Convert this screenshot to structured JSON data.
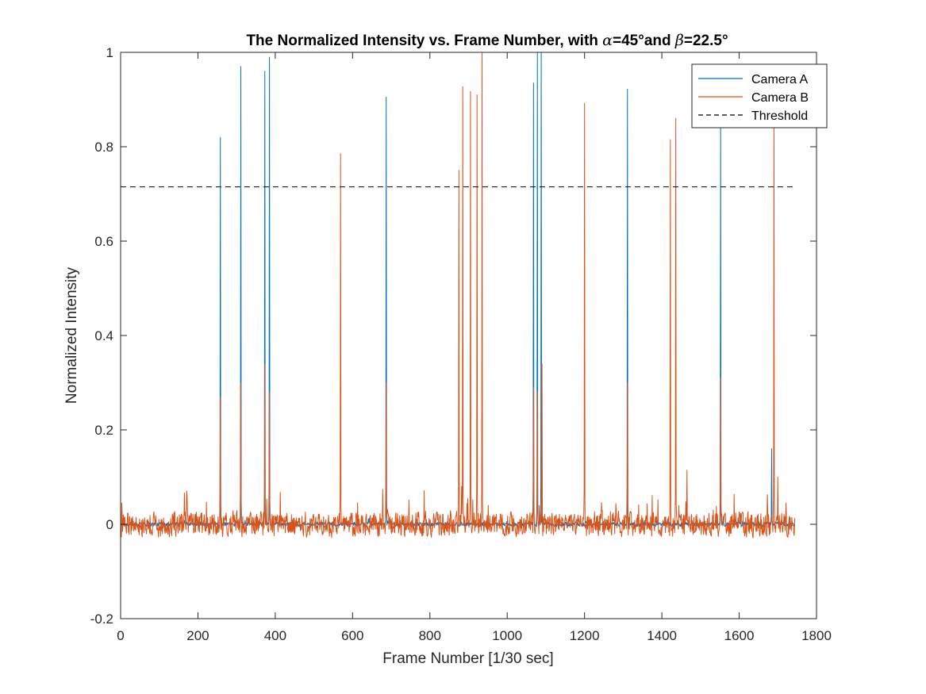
{
  "chart_data": {
    "type": "line",
    "title_parts": [
      "The Normalized Intensity vs. Frame Number, with ",
      "α",
      "=45°and ",
      "β",
      "=22.5°"
    ],
    "xlabel": "Frame Number [1/30 sec]",
    "ylabel": "Normalized Intensity",
    "xlim": [
      0,
      1800
    ],
    "ylim": [
      -0.2,
      1
    ],
    "xticks": [
      0,
      200,
      400,
      600,
      800,
      1000,
      1200,
      1400,
      1600,
      1800
    ],
    "yticks": [
      -0.2,
      0,
      0.2,
      0.4,
      0.6,
      0.8,
      1
    ],
    "ytick_labels": [
      "-0.2",
      "0",
      "0.2",
      "0.4",
      "0.6",
      "0.8",
      "1"
    ],
    "grid": false,
    "legend_position": "top-right",
    "frame_count": 1745,
    "series": [
      {
        "name": "Camera A",
        "color": "#0072BD",
        "style": "solid",
        "baseline": 0.0,
        "noise_amplitude": 0.004,
        "spikes": [
          {
            "x": 258,
            "y": 0.82
          },
          {
            "x": 311,
            "y": 0.97
          },
          {
            "x": 373,
            "y": 0.96
          },
          {
            "x": 385,
            "y": 0.99
          },
          {
            "x": 687,
            "y": 0.905
          },
          {
            "x": 1068,
            "y": 0.935
          },
          {
            "x": 1078,
            "y": 1.0
          },
          {
            "x": 1088,
            "y": 1.0
          },
          {
            "x": 1311,
            "y": 0.922
          },
          {
            "x": 1552,
            "y": 0.85
          },
          {
            "x": 1684,
            "y": 0.16
          }
        ]
      },
      {
        "name": "Camera B",
        "color": "#D95319",
        "style": "solid",
        "baseline": 0.0,
        "noise_amplitude": 0.02,
        "spikes": [
          {
            "x": 258,
            "y": 0.27
          },
          {
            "x": 311,
            "y": 0.3
          },
          {
            "x": 373,
            "y": 0.34
          },
          {
            "x": 385,
            "y": 0.28
          },
          {
            "x": 569,
            "y": 0.785
          },
          {
            "x": 687,
            "y": 0.3
          },
          {
            "x": 875,
            "y": 0.75
          },
          {
            "x": 885,
            "y": 0.927
          },
          {
            "x": 905,
            "y": 0.917
          },
          {
            "x": 922,
            "y": 0.91
          },
          {
            "x": 935,
            "y": 1.0
          },
          {
            "x": 1068,
            "y": 0.29
          },
          {
            "x": 1078,
            "y": 0.28
          },
          {
            "x": 1090,
            "y": 0.34
          },
          {
            "x": 1200,
            "y": 0.892
          },
          {
            "x": 1311,
            "y": 0.3
          },
          {
            "x": 1422,
            "y": 0.815
          },
          {
            "x": 1436,
            "y": 0.86
          },
          {
            "x": 1465,
            "y": 0.115
          },
          {
            "x": 1552,
            "y": 0.31
          },
          {
            "x": 1690,
            "y": 0.87
          },
          {
            "x": 1700,
            "y": 0.1
          }
        ]
      },
      {
        "name": "Threshold",
        "color": "#000000",
        "style": "dashed",
        "y": 0.715
      }
    ]
  }
}
